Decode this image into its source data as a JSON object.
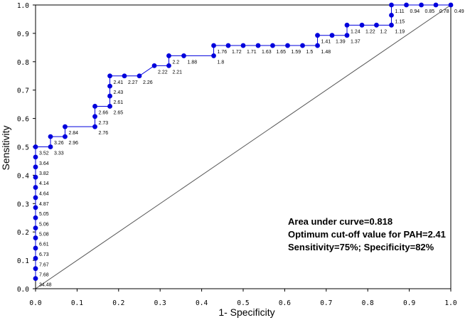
{
  "chart_data": {
    "type": "line",
    "title": "",
    "xlabel": "1- Specificity",
    "ylabel": "Sensitivity",
    "xlim": [
      0,
      1
    ],
    "ylim": [
      0,
      1
    ],
    "x_ticks": [
      "0.0",
      "0.1",
      "0.2",
      "0.3",
      "0.4",
      "0.5",
      "0.6",
      "0.7",
      "0.8",
      "0.9",
      "1.0"
    ],
    "y_ticks": [
      "0.0",
      "0.1",
      "0.2",
      "0.3",
      "0.4",
      "0.5",
      "0.6",
      "0.7",
      "0.8",
      "0.9",
      "1.0"
    ],
    "grid": false,
    "line_color": "#0000dd",
    "marker_color": "#0000dd",
    "reference_line_color": "#555555",
    "series": [
      {
        "points": [
          {
            "x": 0.0,
            "y": 0.036,
            "label": "34.48"
          },
          {
            "x": 0.0,
            "y": 0.071,
            "label": "7.68"
          },
          {
            "x": 0.0,
            "y": 0.107,
            "label": "7.67"
          },
          {
            "x": 0.0,
            "y": 0.143,
            "label": "6.73"
          },
          {
            "x": 0.0,
            "y": 0.179,
            "label": "6.61"
          },
          {
            "x": 0.0,
            "y": 0.214,
            "label": "5.08"
          },
          {
            "x": 0.0,
            "y": 0.25,
            "label": "5.06"
          },
          {
            "x": 0.0,
            "y": 0.286,
            "label": "5.05"
          },
          {
            "x": 0.0,
            "y": 0.321,
            "label": "4.87"
          },
          {
            "x": 0.0,
            "y": 0.357,
            "label": "4.64"
          },
          {
            "x": 0.0,
            "y": 0.393,
            "label": "4.14"
          },
          {
            "x": 0.0,
            "y": 0.429,
            "label": "3.82"
          },
          {
            "x": 0.0,
            "y": 0.464,
            "label": "3.64"
          },
          {
            "x": 0.0,
            "y": 0.5,
            "label": "3.52"
          },
          {
            "x": 0.036,
            "y": 0.5,
            "label": "3.33"
          },
          {
            "x": 0.036,
            "y": 0.536,
            "label": "3.26"
          },
          {
            "x": 0.071,
            "y": 0.536,
            "label": "2.96"
          },
          {
            "x": 0.071,
            "y": 0.571,
            "label": "2.84"
          },
          {
            "x": 0.143,
            "y": 0.571,
            "label": "2.76"
          },
          {
            "x": 0.143,
            "y": 0.607,
            "label": "2.73"
          },
          {
            "x": 0.143,
            "y": 0.643,
            "label": "2.66"
          },
          {
            "x": 0.179,
            "y": 0.643,
            "label": "2.65"
          },
          {
            "x": 0.179,
            "y": 0.679,
            "label": "2.61"
          },
          {
            "x": 0.179,
            "y": 0.714,
            "label": "2.43"
          },
          {
            "x": 0.179,
            "y": 0.75,
            "label": "2.41"
          },
          {
            "x": 0.214,
            "y": 0.75,
            "label": "2.27"
          },
          {
            "x": 0.25,
            "y": 0.75,
            "label": "2.26"
          },
          {
            "x": 0.286,
            "y": 0.786,
            "label": "2.22"
          },
          {
            "x": 0.321,
            "y": 0.786,
            "label": "2.21"
          },
          {
            "x": 0.321,
            "y": 0.821,
            "label": "2.2"
          },
          {
            "x": 0.357,
            "y": 0.821,
            "label": "1.88"
          },
          {
            "x": 0.429,
            "y": 0.821,
            "label": "1.8"
          },
          {
            "x": 0.429,
            "y": 0.857,
            "label": "1.76"
          },
          {
            "x": 0.464,
            "y": 0.857,
            "label": "1.72"
          },
          {
            "x": 0.5,
            "y": 0.857,
            "label": "1.71"
          },
          {
            "x": 0.536,
            "y": 0.857,
            "label": "1.63"
          },
          {
            "x": 0.571,
            "y": 0.857,
            "label": "1.65"
          },
          {
            "x": 0.607,
            "y": 0.857,
            "label": "1.59"
          },
          {
            "x": 0.643,
            "y": 0.857,
            "label": "1.5"
          },
          {
            "x": 0.679,
            "y": 0.857,
            "label": "1.48"
          },
          {
            "x": 0.679,
            "y": 0.893,
            "label": "1.41"
          },
          {
            "x": 0.714,
            "y": 0.893,
            "label": "1.39"
          },
          {
            "x": 0.75,
            "y": 0.893,
            "label": "1.37"
          },
          {
            "x": 0.75,
            "y": 0.929,
            "label": "1.24"
          },
          {
            "x": 0.786,
            "y": 0.929,
            "label": "1.22"
          },
          {
            "x": 0.821,
            "y": 0.929,
            "label": "1.2"
          },
          {
            "x": 0.857,
            "y": 0.929,
            "label": "1.19"
          },
          {
            "x": 0.857,
            "y": 0.964,
            "label": "1.15"
          },
          {
            "x": 0.857,
            "y": 1.0,
            "label": "1.11"
          },
          {
            "x": 0.893,
            "y": 1.0,
            "label": "0.94"
          },
          {
            "x": 0.929,
            "y": 1.0,
            "label": "0.85"
          },
          {
            "x": 0.964,
            "y": 1.0,
            "label": "0.78"
          },
          {
            "x": 1.0,
            "y": 1.0,
            "label": "0.49"
          }
        ]
      }
    ],
    "annotations": [
      "Area under curve=0.818",
      "Optimum cut-off value for PAH=2.41",
      "Sensitivity=75%; Specificity=82%"
    ]
  }
}
